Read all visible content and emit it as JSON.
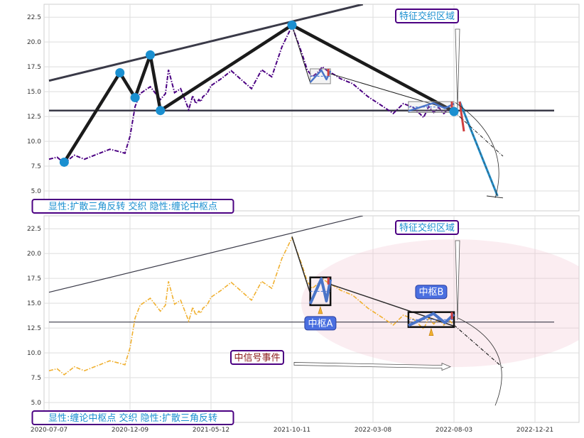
{
  "chart_data": [
    {
      "type": "line",
      "ylim": [
        3.0,
        23.8
      ],
      "yticks": [
        "5.0",
        "7.5",
        "10.0",
        "12.5",
        "15.0",
        "17.5",
        "20.0",
        "22.5"
      ],
      "ytick_values": [
        5,
        7.5,
        10,
        12.5,
        15,
        17.5,
        20,
        22.5
      ],
      "series": [
        {
          "color": "#4b0082",
          "style": "dashdot",
          "x": [
            0,
            8,
            15,
            25,
            35,
            50,
            60,
            68,
            75,
            80,
            85,
            90,
            100,
            110,
            115,
            118,
            124,
            130,
            138,
            142,
            145,
            148,
            150,
            152,
            156,
            160,
            170,
            180,
            190,
            200,
            210,
            220,
            230,
            240,
            250,
            255,
            260,
            265,
            270,
            275,
            282,
            288,
            300,
            315,
            330,
            340,
            350,
            360,
            370,
            375,
            380,
            385,
            390,
            395,
            398,
            400
          ],
          "values": [
            8.2,
            8.4,
            7.8,
            8.6,
            8.2,
            8.8,
            9.2,
            9.0,
            8.8,
            10.5,
            13.5,
            14.8,
            15.5,
            14.2,
            14.8,
            17.2,
            14.9,
            15.3,
            13.2,
            14.6,
            13.8,
            14.2,
            14.0,
            14.5,
            14.8,
            15.6,
            16.3,
            17.1,
            16.2,
            15.3,
            17.2,
            16.5,
            19.5,
            21.6,
            18.8,
            17.2,
            16.5,
            16.9,
            17.5,
            17.1,
            16.7,
            16.3,
            15.8,
            14.5,
            13.5,
            12.8,
            13.8,
            13.4,
            12.4,
            13.5,
            12.9,
            13.4,
            12.8,
            13.3,
            13.0,
            13.1
          ]
        }
      ],
      "pivots": {
        "x": [
          15,
          70,
          85,
          100,
          110,
          240,
          400
        ],
        "values": [
          7.9,
          16.9,
          14.4,
          18.7,
          13.1,
          21.7,
          13.0
        ]
      },
      "upper_trendline": {
        "x": [
          0,
          310
        ],
        "values": [
          16.1,
          23.8
        ]
      },
      "horizontal_line": {
        "value": 13.1
      },
      "zones": [
        {
          "x": [
            258,
            278
          ],
          "values": [
            15.8,
            17.3
          ]
        },
        {
          "x": [
            355,
            400
          ],
          "values": [
            12.9,
            14.0
          ]
        }
      ],
      "forecast": {
        "x_start": 400,
        "value_start": 13.1,
        "x_end": 443,
        "value_end": 4.5
      },
      "feature_label": "特征交织区域",
      "caption": "显性:扩散三角反转 交织 隐性:缠论中枢点"
    },
    {
      "type": "line",
      "ylim": [
        3.0,
        23.8
      ],
      "yticks": [
        "5.0",
        "7.5",
        "10.0",
        "12.5",
        "15.0",
        "17.5",
        "20.0",
        "22.5"
      ],
      "ytick_values": [
        5,
        7.5,
        10,
        12.5,
        15,
        17.5,
        20,
        22.5
      ],
      "series": [
        {
          "color": "#f0b030",
          "style": "dashdot",
          "x": [
            0,
            8,
            15,
            25,
            35,
            50,
            60,
            68,
            75,
            80,
            85,
            90,
            100,
            110,
            115,
            118,
            124,
            130,
            138,
            142,
            145,
            148,
            150,
            152,
            156,
            160,
            170,
            180,
            190,
            200,
            210,
            220,
            230,
            240,
            250,
            255,
            260,
            265,
            270,
            275,
            282,
            288,
            300,
            315,
            330,
            340,
            350,
            360,
            370,
            375,
            380,
            385,
            390,
            395,
            398,
            400
          ],
          "values": [
            8.2,
            8.4,
            7.8,
            8.6,
            8.2,
            8.8,
            9.2,
            9.0,
            8.8,
            10.5,
            13.5,
            14.8,
            15.5,
            14.2,
            14.8,
            17.2,
            14.9,
            15.3,
            13.2,
            14.6,
            13.8,
            14.2,
            14.0,
            14.5,
            14.8,
            15.6,
            16.3,
            17.1,
            16.2,
            15.3,
            17.2,
            16.5,
            19.5,
            21.6,
            18.8,
            17.2,
            16.5,
            16.9,
            17.5,
            17.1,
            16.7,
            16.3,
            15.8,
            14.5,
            13.5,
            12.8,
            13.8,
            13.4,
            12.4,
            13.5,
            12.9,
            13.4,
            12.8,
            13.3,
            13.0,
            13.1
          ]
        }
      ],
      "upper_trendline": {
        "x": [
          0,
          310
        ],
        "values": [
          16.1,
          23.8
        ]
      },
      "horizontal_line": {
        "value": 13.1
      },
      "zones": [
        {
          "x": [
            258,
            278
          ],
          "values": [
            14.8,
            17.6
          ],
          "label": "中枢A"
        },
        {
          "x": [
            355,
            400
          ],
          "values": [
            12.6,
            14.1
          ],
          "label": "中枢B"
        }
      ],
      "signal_label": "中信号事件",
      "feature_label": "特征交织区域",
      "caption": "显性:缠论中枢点 交织 隐性:扩散三角反转",
      "xtick_labels": [
        "2020-07-07",
        "2020-12-09",
        "2021-05-12",
        "2021-10-11",
        "2022-03-08",
        "2022-08-03",
        "2022-12-21"
      ],
      "xtick_values": [
        0,
        80,
        160,
        240,
        320,
        400,
        480
      ]
    }
  ],
  "colors": {
    "accent": "#1a8fd0",
    "box_border": "#4b0082",
    "orange": "#f0b030",
    "purple": "#4b0082",
    "zone_fill": "#4a6fe0"
  }
}
